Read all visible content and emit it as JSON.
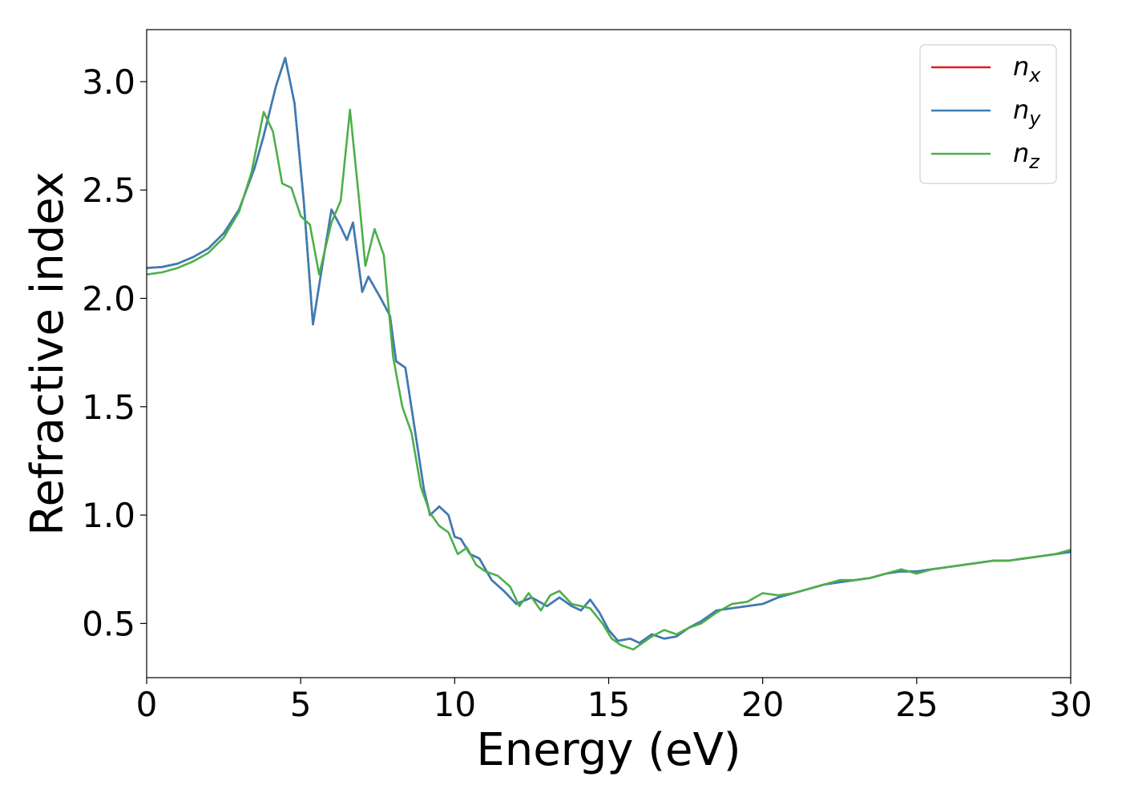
{
  "chart_data": {
    "type": "line",
    "xlabel": "Energy (eV)",
    "ylabel": "Refractive index",
    "xlim": [
      0,
      30
    ],
    "ylim": [
      0.25,
      3.24
    ],
    "xticks": [
      0,
      5,
      10,
      15,
      20,
      25,
      30
    ],
    "xtick_labels": [
      "0",
      "5",
      "10",
      "15",
      "20",
      "25",
      "30"
    ],
    "yticks": [
      0.5,
      1.0,
      1.5,
      2.0,
      2.5,
      3.0
    ],
    "ytick_labels": [
      "0.5",
      "1.0",
      "1.5",
      "2.0",
      "2.5",
      "3.0"
    ],
    "grid": false,
    "legend_position": "top-right",
    "series": [
      {
        "name": "n",
        "subscript": "x",
        "color": "#e41a1c",
        "points": [
          [
            0,
            2.14
          ],
          [
            0.5,
            2.145
          ],
          [
            1,
            2.16
          ],
          [
            1.5,
            2.19
          ],
          [
            2,
            2.23
          ],
          [
            2.5,
            2.3
          ],
          [
            3,
            2.41
          ],
          [
            3.5,
            2.6
          ],
          [
            3.8,
            2.75
          ],
          [
            4.2,
            2.98
          ],
          [
            4.5,
            3.11
          ],
          [
            4.8,
            2.9
          ],
          [
            5.1,
            2.45
          ],
          [
            5.4,
            1.88
          ],
          [
            5.7,
            2.15
          ],
          [
            6.0,
            2.41
          ],
          [
            6.3,
            2.33
          ],
          [
            6.5,
            2.27
          ],
          [
            6.7,
            2.35
          ],
          [
            7.0,
            2.03
          ],
          [
            7.2,
            2.1
          ],
          [
            7.6,
            2.0
          ],
          [
            7.9,
            1.92
          ],
          [
            8.1,
            1.71
          ],
          [
            8.4,
            1.68
          ],
          [
            8.7,
            1.4
          ],
          [
            9.0,
            1.12
          ],
          [
            9.2,
            1.0
          ],
          [
            9.5,
            1.04
          ],
          [
            9.8,
            1.0
          ],
          [
            10.0,
            0.9
          ],
          [
            10.2,
            0.89
          ],
          [
            10.5,
            0.82
          ],
          [
            10.8,
            0.8
          ],
          [
            11.2,
            0.7
          ],
          [
            11.6,
            0.65
          ],
          [
            12.0,
            0.59
          ],
          [
            12.5,
            0.62
          ],
          [
            13.0,
            0.58
          ],
          [
            13.4,
            0.62
          ],
          [
            13.8,
            0.58
          ],
          [
            14.1,
            0.56
          ],
          [
            14.4,
            0.61
          ],
          [
            14.7,
            0.55
          ],
          [
            15.0,
            0.47
          ],
          [
            15.3,
            0.42
          ],
          [
            15.7,
            0.43
          ],
          [
            16.0,
            0.41
          ],
          [
            16.4,
            0.45
          ],
          [
            16.8,
            0.43
          ],
          [
            17.2,
            0.44
          ],
          [
            17.6,
            0.48
          ],
          [
            18.0,
            0.51
          ],
          [
            18.5,
            0.56
          ],
          [
            19.0,
            0.57
          ],
          [
            19.5,
            0.58
          ],
          [
            20.0,
            0.59
          ],
          [
            20.5,
            0.62
          ],
          [
            21.0,
            0.64
          ],
          [
            21.5,
            0.66
          ],
          [
            22.0,
            0.68
          ],
          [
            22.5,
            0.69
          ],
          [
            23.0,
            0.7
          ],
          [
            23.5,
            0.71
          ],
          [
            24.0,
            0.73
          ],
          [
            24.5,
            0.74
          ],
          [
            25.0,
            0.74
          ],
          [
            25.5,
            0.75
          ],
          [
            26.0,
            0.76
          ],
          [
            26.5,
            0.77
          ],
          [
            27.0,
            0.78
          ],
          [
            27.5,
            0.79
          ],
          [
            28.0,
            0.79
          ],
          [
            28.5,
            0.8
          ],
          [
            29.0,
            0.81
          ],
          [
            29.5,
            0.82
          ],
          [
            30.0,
            0.83
          ]
        ]
      },
      {
        "name": "n",
        "subscript": "y",
        "color": "#377eb8",
        "points": [
          [
            0,
            2.14
          ],
          [
            0.5,
            2.145
          ],
          [
            1,
            2.16
          ],
          [
            1.5,
            2.19
          ],
          [
            2,
            2.23
          ],
          [
            2.5,
            2.3
          ],
          [
            3,
            2.41
          ],
          [
            3.5,
            2.6
          ],
          [
            3.8,
            2.75
          ],
          [
            4.2,
            2.98
          ],
          [
            4.5,
            3.11
          ],
          [
            4.8,
            2.9
          ],
          [
            5.1,
            2.45
          ],
          [
            5.4,
            1.88
          ],
          [
            5.7,
            2.15
          ],
          [
            6.0,
            2.41
          ],
          [
            6.3,
            2.33
          ],
          [
            6.5,
            2.27
          ],
          [
            6.7,
            2.35
          ],
          [
            7.0,
            2.03
          ],
          [
            7.2,
            2.1
          ],
          [
            7.6,
            2.0
          ],
          [
            7.9,
            1.92
          ],
          [
            8.1,
            1.71
          ],
          [
            8.4,
            1.68
          ],
          [
            8.7,
            1.4
          ],
          [
            9.0,
            1.12
          ],
          [
            9.2,
            1.0
          ],
          [
            9.5,
            1.04
          ],
          [
            9.8,
            1.0
          ],
          [
            10.0,
            0.9
          ],
          [
            10.2,
            0.89
          ],
          [
            10.5,
            0.82
          ],
          [
            10.8,
            0.8
          ],
          [
            11.2,
            0.7
          ],
          [
            11.6,
            0.65
          ],
          [
            12.0,
            0.59
          ],
          [
            12.5,
            0.62
          ],
          [
            13.0,
            0.58
          ],
          [
            13.4,
            0.62
          ],
          [
            13.8,
            0.58
          ],
          [
            14.1,
            0.56
          ],
          [
            14.4,
            0.61
          ],
          [
            14.7,
            0.55
          ],
          [
            15.0,
            0.47
          ],
          [
            15.3,
            0.42
          ],
          [
            15.7,
            0.43
          ],
          [
            16.0,
            0.41
          ],
          [
            16.4,
            0.45
          ],
          [
            16.8,
            0.43
          ],
          [
            17.2,
            0.44
          ],
          [
            17.6,
            0.48
          ],
          [
            18.0,
            0.51
          ],
          [
            18.5,
            0.56
          ],
          [
            19.0,
            0.57
          ],
          [
            19.5,
            0.58
          ],
          [
            20.0,
            0.59
          ],
          [
            20.5,
            0.62
          ],
          [
            21.0,
            0.64
          ],
          [
            21.5,
            0.66
          ],
          [
            22.0,
            0.68
          ],
          [
            22.5,
            0.69
          ],
          [
            23.0,
            0.7
          ],
          [
            23.5,
            0.71
          ],
          [
            24.0,
            0.73
          ],
          [
            24.5,
            0.74
          ],
          [
            25.0,
            0.74
          ],
          [
            25.5,
            0.75
          ],
          [
            26.0,
            0.76
          ],
          [
            26.5,
            0.77
          ],
          [
            27.0,
            0.78
          ],
          [
            27.5,
            0.79
          ],
          [
            28.0,
            0.79
          ],
          [
            28.5,
            0.8
          ],
          [
            29.0,
            0.81
          ],
          [
            29.5,
            0.82
          ],
          [
            30.0,
            0.83
          ]
        ]
      },
      {
        "name": "n",
        "subscript": "z",
        "color": "#4daf4a",
        "points": [
          [
            0,
            2.11
          ],
          [
            0.5,
            2.12
          ],
          [
            1,
            2.14
          ],
          [
            1.5,
            2.17
          ],
          [
            2,
            2.21
          ],
          [
            2.5,
            2.28
          ],
          [
            3,
            2.4
          ],
          [
            3.4,
            2.58
          ],
          [
            3.8,
            2.86
          ],
          [
            4.1,
            2.77
          ],
          [
            4.4,
            2.53
          ],
          [
            4.7,
            2.51
          ],
          [
            5.0,
            2.38
          ],
          [
            5.3,
            2.34
          ],
          [
            5.6,
            2.11
          ],
          [
            6.0,
            2.35
          ],
          [
            6.3,
            2.45
          ],
          [
            6.6,
            2.87
          ],
          [
            6.9,
            2.45
          ],
          [
            7.1,
            2.15
          ],
          [
            7.4,
            2.32
          ],
          [
            7.7,
            2.2
          ],
          [
            8.0,
            1.73
          ],
          [
            8.3,
            1.5
          ],
          [
            8.6,
            1.38
          ],
          [
            8.9,
            1.13
          ],
          [
            9.2,
            1.01
          ],
          [
            9.5,
            0.95
          ],
          [
            9.8,
            0.92
          ],
          [
            10.1,
            0.82
          ],
          [
            10.4,
            0.85
          ],
          [
            10.7,
            0.77
          ],
          [
            11.0,
            0.74
          ],
          [
            11.4,
            0.72
          ],
          [
            11.8,
            0.67
          ],
          [
            12.1,
            0.58
          ],
          [
            12.4,
            0.64
          ],
          [
            12.8,
            0.56
          ],
          [
            13.1,
            0.63
          ],
          [
            13.4,
            0.65
          ],
          [
            13.8,
            0.59
          ],
          [
            14.1,
            0.58
          ],
          [
            14.4,
            0.57
          ],
          [
            14.8,
            0.5
          ],
          [
            15.1,
            0.43
          ],
          [
            15.4,
            0.4
          ],
          [
            15.8,
            0.38
          ],
          [
            16.1,
            0.41
          ],
          [
            16.4,
            0.44
          ],
          [
            16.8,
            0.47
          ],
          [
            17.2,
            0.45
          ],
          [
            17.6,
            0.48
          ],
          [
            18.0,
            0.5
          ],
          [
            18.5,
            0.55
          ],
          [
            19.0,
            0.59
          ],
          [
            19.5,
            0.6
          ],
          [
            20.0,
            0.64
          ],
          [
            20.5,
            0.63
          ],
          [
            21.0,
            0.64
          ],
          [
            21.5,
            0.66
          ],
          [
            22.0,
            0.68
          ],
          [
            22.5,
            0.7
          ],
          [
            23.0,
            0.7
          ],
          [
            23.5,
            0.71
          ],
          [
            24.0,
            0.73
          ],
          [
            24.5,
            0.75
          ],
          [
            25.0,
            0.73
          ],
          [
            25.5,
            0.75
          ],
          [
            26.0,
            0.76
          ],
          [
            26.5,
            0.77
          ],
          [
            27.0,
            0.78
          ],
          [
            27.5,
            0.79
          ],
          [
            28.0,
            0.79
          ],
          [
            28.5,
            0.8
          ],
          [
            29.0,
            0.81
          ],
          [
            29.5,
            0.82
          ],
          [
            30.0,
            0.84
          ]
        ]
      }
    ]
  }
}
